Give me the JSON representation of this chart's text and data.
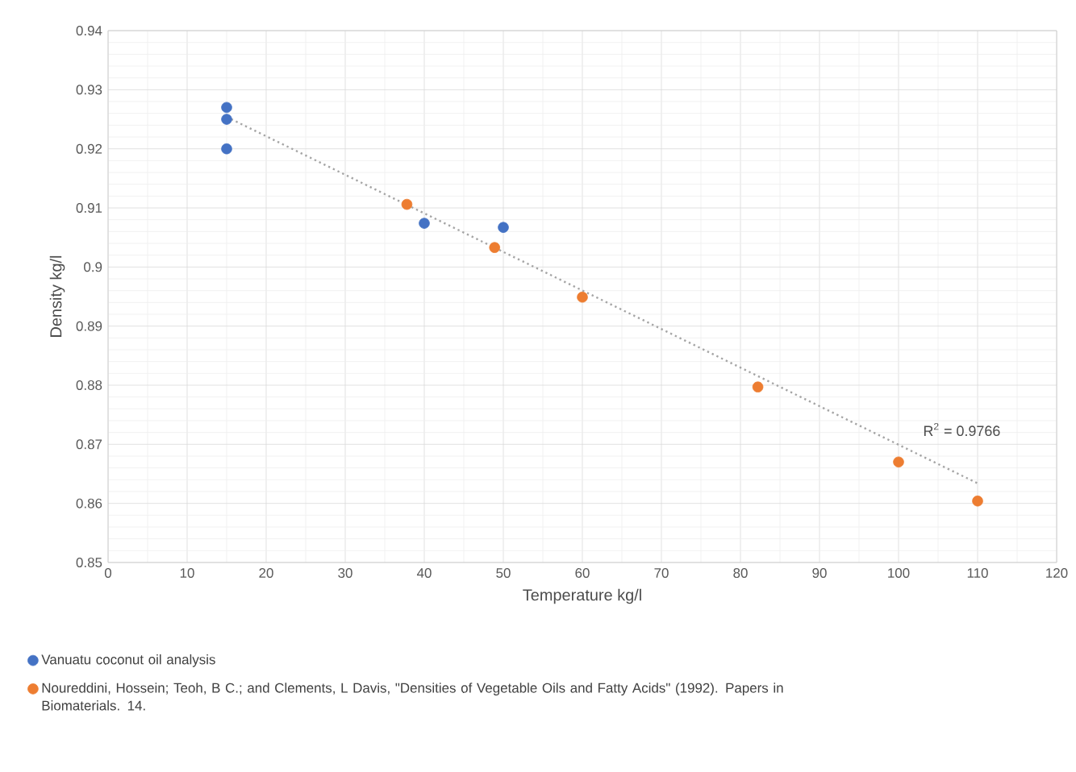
{
  "chart_data": {
    "type": "scatter",
    "xlabel": "Temperature kg/l",
    "ylabel": "Density kg/l",
    "xlim": [
      0,
      120
    ],
    "ylim": [
      0.85,
      0.94
    ],
    "xticks": [
      0,
      10,
      20,
      30,
      40,
      50,
      60,
      70,
      80,
      90,
      100,
      110,
      120
    ],
    "yticks": [
      0.85,
      0.86,
      0.87,
      0.88,
      0.89,
      0.9,
      0.91,
      0.92,
      0.93,
      0.94
    ],
    "grid": true,
    "legend": "bottom",
    "marker": "circle",
    "series": [
      {
        "name": "Vanuatu coconut oil analysis",
        "color": "#4472c4",
        "x": [
          15,
          15,
          15,
          40,
          50
        ],
        "values": [
          0.927,
          0.925,
          0.92,
          0.9074,
          0.9067
        ]
      },
      {
        "name": "Noureddini, Hossein; Teoh, B C.; and Clements, L Davis, \"Densities of Vegetable Oils and Fatty Acids\" (1992). Papers in Biomaterials. 14.",
        "color": "#ed7d31",
        "x": [
          37.8,
          48.9,
          60,
          82.2,
          100,
          110
        ],
        "values": [
          0.9106,
          0.9033,
          0.8949,
          0.8797,
          0.867,
          0.8604
        ]
      },
      {
        "type": "line",
        "line_style": "dotted",
        "marker": "none",
        "color": "#a5a5a5",
        "x": [
          15,
          110
        ],
        "values": [
          0.9254,
          0.8634
        ]
      }
    ],
    "annotations": [
      "R$^{2}$ = 0.9766"
    ]
  }
}
